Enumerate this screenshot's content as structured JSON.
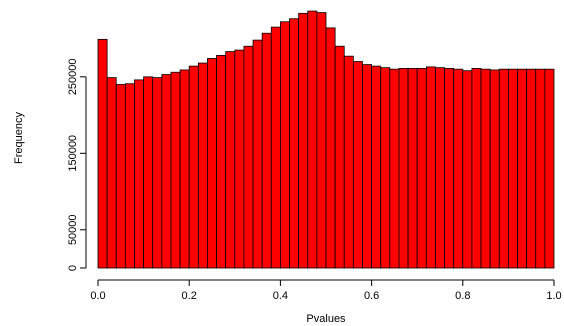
{
  "chart_data": {
    "type": "bar",
    "title": "",
    "xlabel": "Pvalues",
    "ylabel": "Frequency",
    "bar_color": "#ff0000",
    "edge_color": "#000000",
    "xlim": [
      0,
      1
    ],
    "ylim": [
      0,
      340000
    ],
    "x_ticks": [
      0.0,
      0.2,
      0.4,
      0.6,
      0.8,
      1.0
    ],
    "x_tick_labels": [
      "0.0",
      "0.2",
      "0.4",
      "0.6",
      "0.8",
      "1.0"
    ],
    "y_ticks": [
      0,
      50000,
      150000,
      250000
    ],
    "y_tick_labels": [
      "0",
      "50000",
      "150000",
      "250000"
    ],
    "bin_width": 0.02,
    "bin_starts": [
      0.0,
      0.02,
      0.04,
      0.06,
      0.08,
      0.1,
      0.12,
      0.14,
      0.16,
      0.18,
      0.2,
      0.22,
      0.24,
      0.26,
      0.28,
      0.3,
      0.32,
      0.34,
      0.36,
      0.38,
      0.4,
      0.42,
      0.44,
      0.46,
      0.48,
      0.5,
      0.52,
      0.54,
      0.56,
      0.58,
      0.6,
      0.62,
      0.64,
      0.66,
      0.68,
      0.7,
      0.72,
      0.74,
      0.76,
      0.78,
      0.8,
      0.82,
      0.84,
      0.86,
      0.88,
      0.9,
      0.92,
      0.94,
      0.96,
      0.98
    ],
    "values": [
      299000,
      249000,
      240000,
      241000,
      246000,
      250000,
      249000,
      253000,
      256000,
      259000,
      264000,
      268000,
      274000,
      278000,
      283000,
      285000,
      290000,
      298000,
      307000,
      315000,
      322000,
      326000,
      333000,
      336000,
      334000,
      314000,
      290000,
      277000,
      270000,
      266000,
      264000,
      262000,
      260000,
      261000,
      261000,
      261000,
      263000,
      262000,
      261000,
      260000,
      258000,
      261000,
      260000,
      259000,
      260000,
      260000,
      260000,
      260000,
      260000,
      260000
    ]
  }
}
